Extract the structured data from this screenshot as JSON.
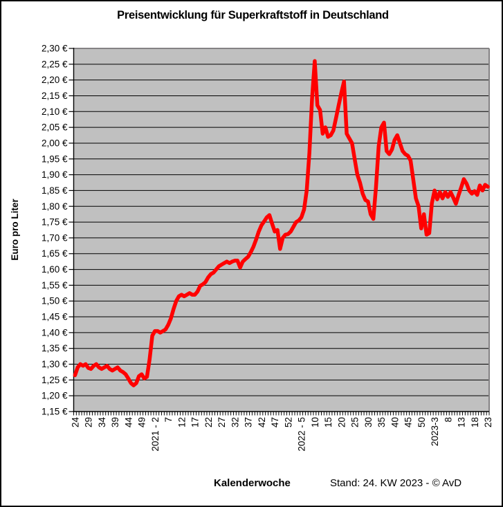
{
  "title": "Preisentwicklung für Superkraftstoff in Deutschland",
  "footer": {
    "x_axis_title": "Kalenderwoche",
    "stand_note": "Stand: 24. KW 2023 - © AvD"
  },
  "colors": {
    "line": "#FF0000",
    "plot_bg": "#C0C0C0",
    "gridline": "#000000",
    "axis": "#000000",
    "plot_border": "#848284"
  },
  "chart_data": {
    "type": "line",
    "title": "Preisentwicklung für Superkraftstoff in Deutschland",
    "xlabel": "Kalenderwoche",
    "ylabel": "Euro pro Liter",
    "ylim": [
      1.15,
      2.3
    ],
    "ytick_step": 0.05,
    "grid": "horizontal",
    "legend": "none",
    "y_tick_labels": [
      "2,30 €",
      "2,25 €",
      "2,20 €",
      "2,15 €",
      "2,10 €",
      "2,05 €",
      "2,00 €",
      "1,95 €",
      "1,90 €",
      "1,85 €",
      "1,80 €",
      "1,75 €",
      "1,70 €",
      "1,65 €",
      "1,60 €",
      "1,55 €",
      "1,50 €",
      "1,45 €",
      "1,40 €",
      "1,35 €",
      "1,30 €",
      "1,25 €",
      "1,20 €",
      "1,15 €"
    ],
    "x_tick_labels": [
      "24",
      "29",
      "34",
      "39",
      "44",
      "49",
      "2021 - 2",
      "7",
      "12",
      "17",
      "22",
      "27",
      "32",
      "37",
      "42",
      "47",
      "52",
      "2022 - 5",
      "10",
      "15",
      "20",
      "25",
      "30",
      "35",
      "40",
      "45",
      "50",
      "2023-3",
      "8",
      "13",
      "18",
      "23"
    ],
    "x_tick_label_every": 5,
    "x_note": "weekly values from 2020 week 24 to 2023 week 23",
    "series": [
      {
        "name": "Superkraftstoff Euro pro Liter",
        "values": [
          1.265,
          1.29,
          1.3,
          1.295,
          1.3,
          1.288,
          1.285,
          1.295,
          1.3,
          1.29,
          1.285,
          1.29,
          1.295,
          1.285,
          1.28,
          1.285,
          1.29,
          1.28,
          1.275,
          1.268,
          1.255,
          1.24,
          1.233,
          1.24,
          1.262,
          1.268,
          1.255,
          1.26,
          1.315,
          1.39,
          1.405,
          1.405,
          1.4,
          1.405,
          1.41,
          1.425,
          1.445,
          1.475,
          1.5,
          1.515,
          1.52,
          1.515,
          1.52,
          1.525,
          1.52,
          1.52,
          1.53,
          1.548,
          1.553,
          1.56,
          1.575,
          1.585,
          1.59,
          1.6,
          1.61,
          1.615,
          1.62,
          1.625,
          1.62,
          1.625,
          1.628,
          1.628,
          1.606,
          1.625,
          1.633,
          1.64,
          1.655,
          1.672,
          1.695,
          1.72,
          1.74,
          1.752,
          1.765,
          1.772,
          1.745,
          1.72,
          1.725,
          1.665,
          1.7,
          1.71,
          1.712,
          1.72,
          1.735,
          1.75,
          1.755,
          1.765,
          1.79,
          1.85,
          1.97,
          2.14,
          2.26,
          2.12,
          2.105,
          2.03,
          2.05,
          2.02,
          2.025,
          2.04,
          2.08,
          2.12,
          2.16,
          2.195,
          2.03,
          2.015,
          2.0,
          1.95,
          1.9,
          1.875,
          1.84,
          1.82,
          1.815,
          1.775,
          1.76,
          1.86,
          1.99,
          2.05,
          2.065,
          1.975,
          1.965,
          1.98,
          2.01,
          2.025,
          2.0,
          1.975,
          1.965,
          1.96,
          1.945,
          1.885,
          1.825,
          1.8,
          1.73,
          1.775,
          1.71,
          1.715,
          1.81,
          1.85,
          1.822,
          1.845,
          1.825,
          1.845,
          1.83,
          1.845,
          1.828,
          1.808,
          1.835,
          1.86,
          1.886,
          1.872,
          1.85,
          1.84,
          1.848,
          1.836,
          1.866,
          1.85,
          1.868,
          1.862
        ]
      }
    ]
  }
}
